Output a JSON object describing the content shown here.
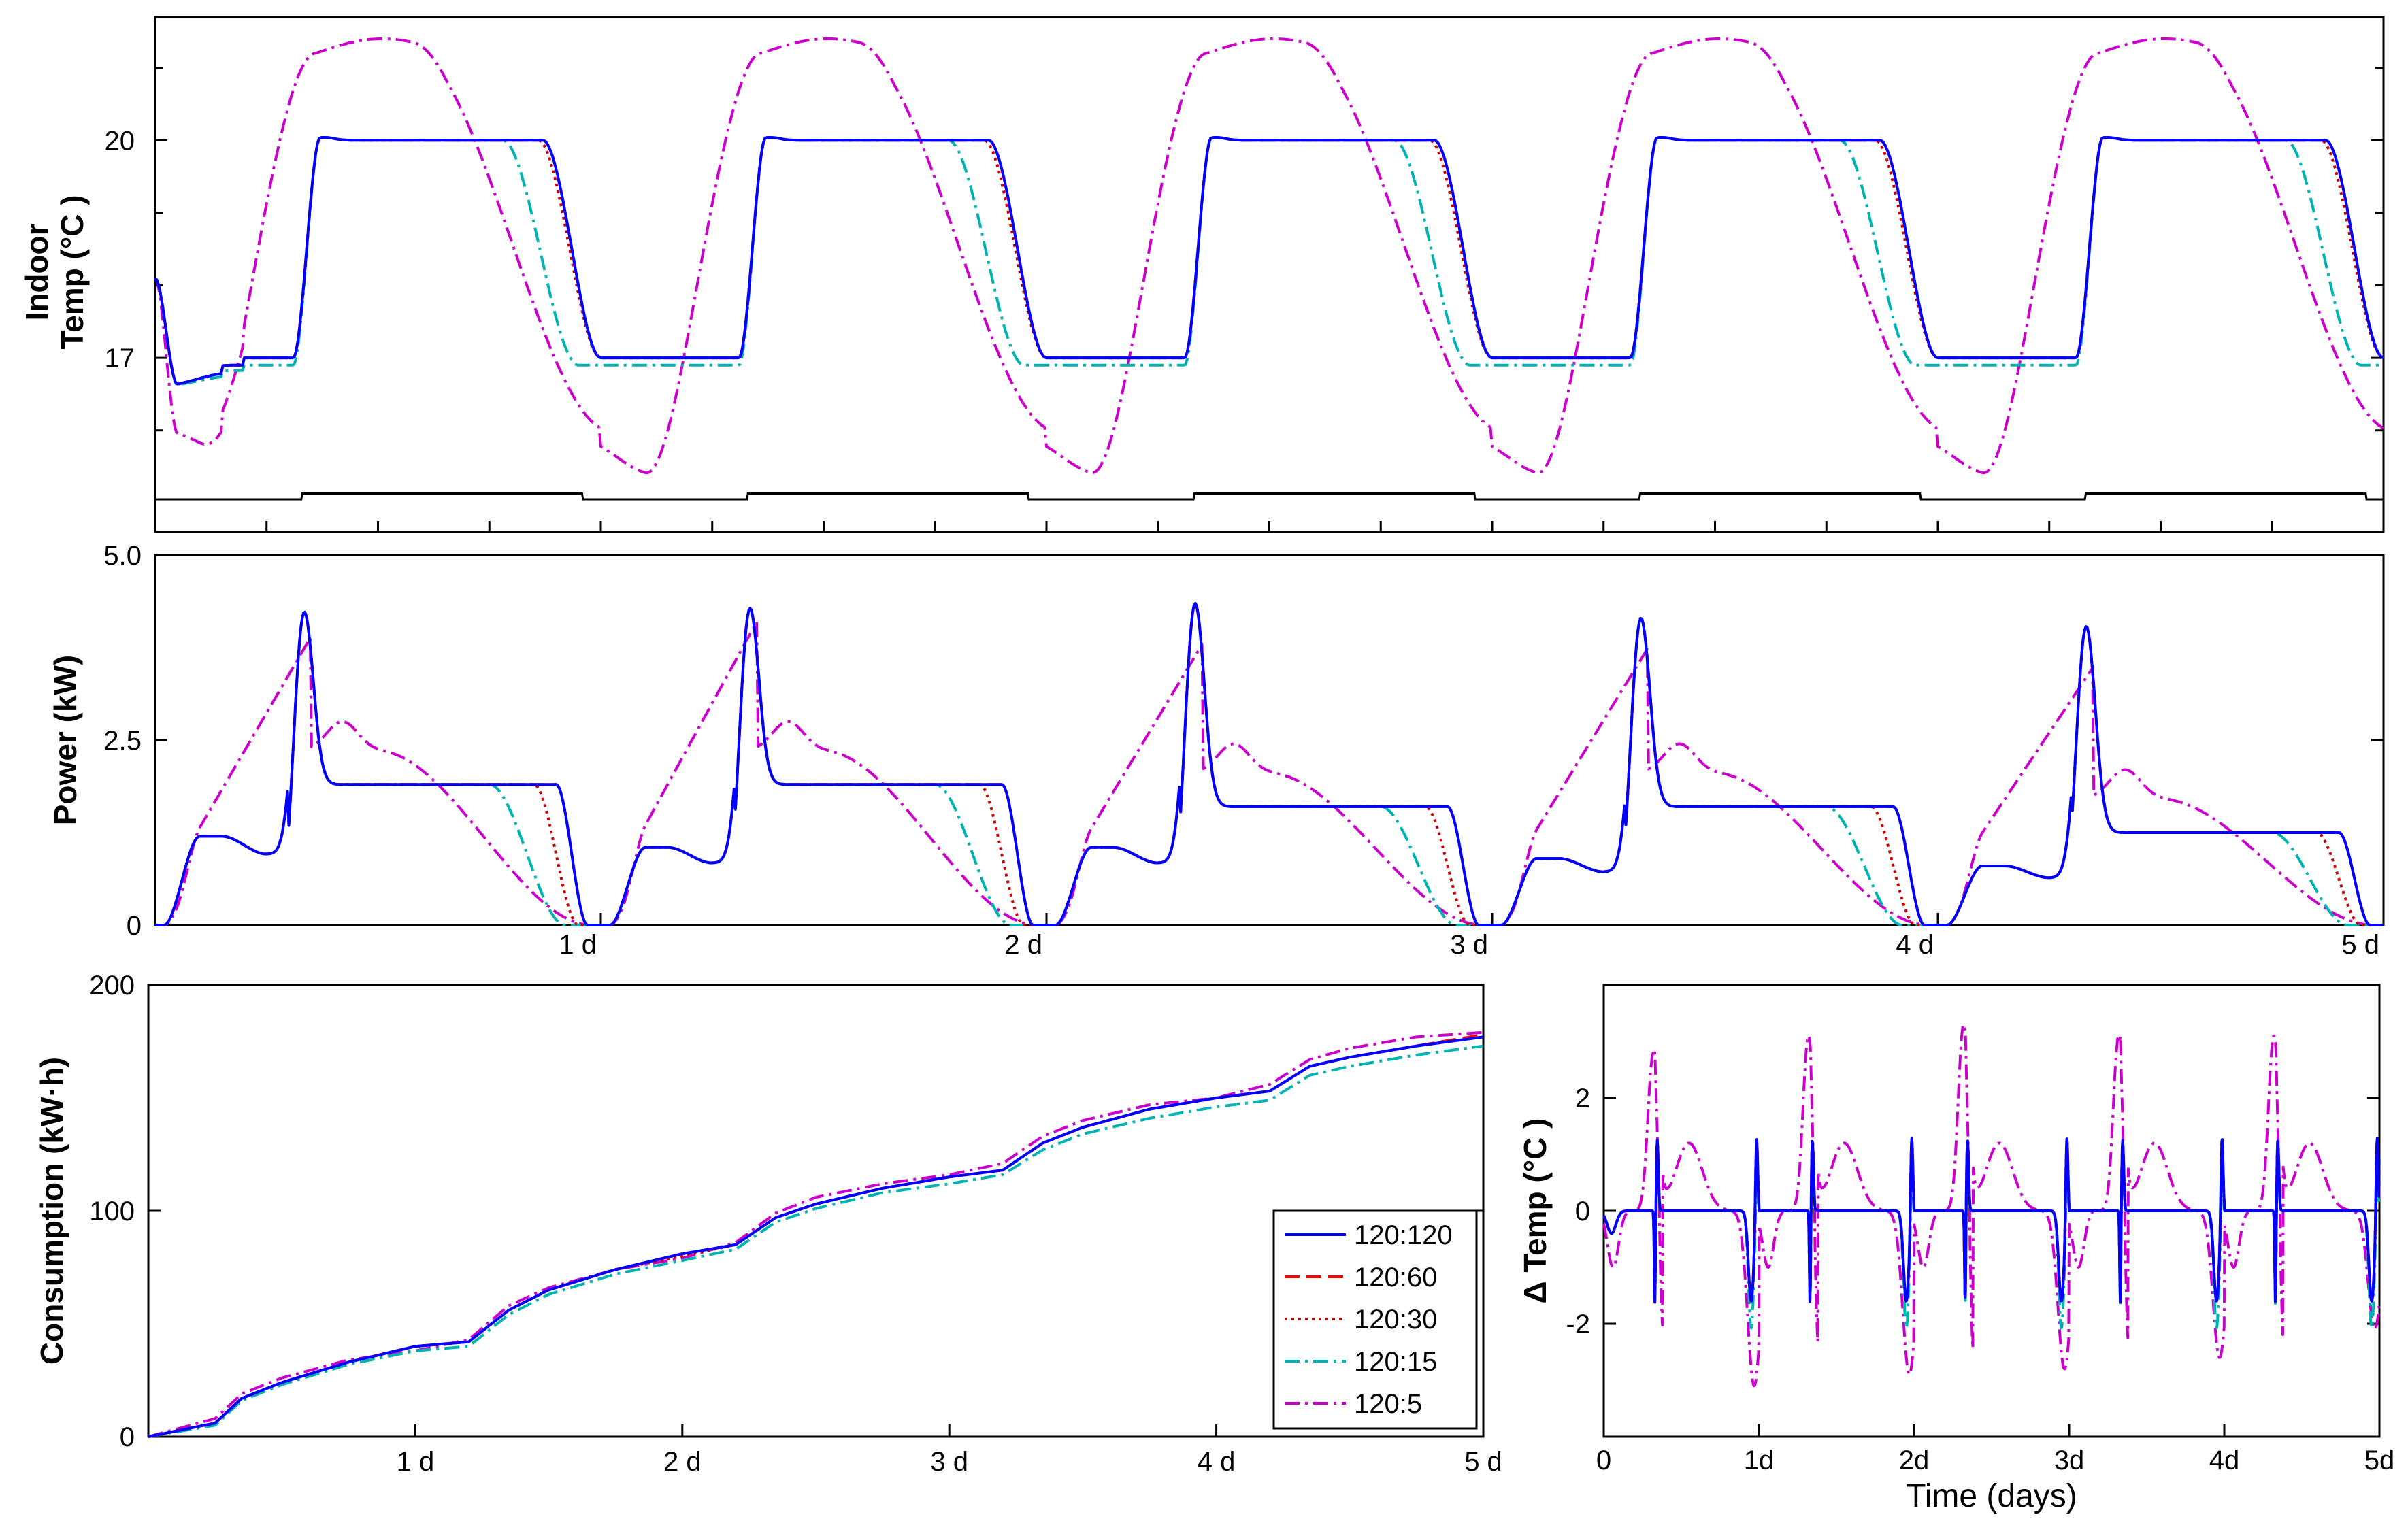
{
  "chart_data": [
    {
      "type": "line",
      "id": "temp",
      "ylabel_lines": [
        "Indoor",
        "Temp (°C )"
      ],
      "xlim": [
        0,
        5
      ],
      "ylim": [
        14.6,
        21.7
      ],
      "yticks": [
        17,
        20
      ],
      "ytick_labels": [
        "17",
        "20"
      ],
      "xticks": [
        0.25,
        0.5,
        0.75,
        1,
        1.25,
        1.5,
        1.75,
        2,
        2.25,
        2.5,
        2.75,
        3,
        3.25,
        3.5,
        3.75,
        4,
        4.25,
        4.5,
        4.75
      ],
      "xtick_labels": [],
      "yminor": [
        16,
        17,
        18,
        19,
        20,
        21
      ],
      "setpoint": {
        "low": 15.05,
        "high": 15.13,
        "intervals": [
          [
            0.33,
            0.96
          ],
          [
            1.33,
            1.96
          ],
          [
            2.33,
            2.96
          ],
          [
            3.33,
            3.96
          ],
          [
            4.33,
            4.96
          ]
        ]
      },
      "series_params": [
        {
          "name": "120:120",
          "base": 17,
          "high": 20,
          "start": 18.1,
          "rise": [
            0.31,
            0.37
          ],
          "fall": [
            0.87,
            1.0
          ],
          "overshoot": 0.04
        },
        {
          "name": "120:60",
          "base": 17,
          "high": 20,
          "start": 18.1,
          "rise": [
            0.31,
            0.37
          ],
          "fall": [
            0.87,
            1.0
          ],
          "overshoot": 0.04
        },
        {
          "name": "120:30",
          "base": 17,
          "high": 20,
          "start": 18.1,
          "rise": [
            0.31,
            0.37
          ],
          "fall": [
            0.86,
            1.0
          ],
          "overshoot": 0.04
        },
        {
          "name": "120:15",
          "base": 16.9,
          "high": 20,
          "start": 18.1,
          "rise": [
            0.31,
            0.37
          ],
          "fall": [
            0.78,
            0.95
          ],
          "overshoot": 0.04
        },
        {
          "name": "120:5",
          "base": 16.0,
          "high": 21.2,
          "start": 18.1,
          "rise": [
            0.1,
            0.36
          ],
          "fall": [
            0.58,
            1.02
          ],
          "overshoot": 0
        }
      ]
    },
    {
      "type": "line",
      "id": "power",
      "ylabel": "Power (kW)",
      "xlim": [
        0,
        5
      ],
      "ylim": [
        0,
        5.0
      ],
      "yticks": [
        0,
        2.5,
        5.0
      ],
      "ytick_labels": [
        "0",
        "2.5",
        "5.0"
      ],
      "xticks": [
        1,
        2,
        3,
        4,
        5
      ],
      "xtick_labels": [
        "1 d",
        "2 d",
        "3 d",
        "4 d",
        "5 d"
      ],
      "peaks": [
        4.75,
        4.8,
        4.8,
        4.6,
        4.4
      ],
      "plateau": [
        1.9,
        1.9,
        1.6,
        1.6,
        1.25
      ],
      "day_start_level": [
        1.2,
        1.05,
        1.05,
        0.9,
        0.8
      ],
      "flex_peaks": [
        3.9,
        4.1,
        3.8,
        3.75,
        3.5
      ]
    },
    {
      "type": "line",
      "id": "consumption",
      "ylabel": "Consumption (kW·h)",
      "xlim": [
        0,
        5
      ],
      "ylim": [
        0,
        200
      ],
      "yticks": [
        0,
        100,
        200
      ],
      "ytick_labels": [
        "0",
        "100",
        "200"
      ],
      "xticks": [
        1,
        2,
        3,
        4,
        5
      ],
      "xtick_labels": [
        "1 d",
        "2 d",
        "3 d",
        "4 d",
        "5 d"
      ],
      "legend": {
        "placement": "lower-right",
        "entries": [
          "120:120",
          "120:60",
          "120:30",
          "120:15",
          "120:5"
        ]
      },
      "x": [
        0,
        0.25,
        0.35,
        0.5,
        0.75,
        1.0,
        1.2,
        1.35,
        1.5,
        1.75,
        2.0,
        2.2,
        2.35,
        2.5,
        2.75,
        3.0,
        3.2,
        3.35,
        3.5,
        3.75,
        4.0,
        4.2,
        4.35,
        4.5,
        4.75,
        5.0
      ],
      "series": [
        {
          "name": "120:120",
          "values": [
            0,
            6,
            17,
            24,
            33,
            40,
            42,
            56,
            65,
            74,
            81,
            85,
            97,
            103,
            110,
            115,
            118,
            130,
            137,
            145,
            150,
            153,
            164,
            168,
            173,
            177
          ]
        },
        {
          "name": "120:60",
          "values": [
            0,
            6,
            17,
            24,
            33,
            40,
            42,
            56,
            65,
            74,
            81,
            85,
            97,
            103,
            110,
            115,
            118,
            130,
            137,
            145,
            150,
            153,
            164,
            168,
            173,
            178
          ]
        },
        {
          "name": "120:30",
          "values": [
            0,
            6,
            17,
            24,
            33,
            40,
            42,
            56,
            65,
            74,
            80,
            85,
            97,
            103,
            110,
            115,
            118,
            130,
            137,
            145,
            150,
            153,
            164,
            168,
            173,
            177
          ]
        },
        {
          "name": "120:15",
          "values": [
            0,
            5,
            16,
            23,
            32,
            38,
            40,
            54,
            63,
            72,
            78,
            83,
            95,
            101,
            108,
            112,
            116,
            127,
            134,
            141,
            146,
            149,
            160,
            164,
            169,
            173
          ]
        },
        {
          "name": "120:5",
          "values": [
            0,
            8,
            19,
            26,
            34,
            38,
            43,
            58,
            66,
            74,
            79,
            86,
            99,
            106,
            112,
            116,
            121,
            133,
            140,
            147,
            150,
            156,
            167,
            172,
            177,
            179
          ]
        }
      ]
    },
    {
      "type": "line",
      "id": "delta",
      "ylabel": "Δ Temp (°C )",
      "xlabel": "Time (days)",
      "xlim": [
        0,
        5
      ],
      "ylim": [
        -4,
        4
      ],
      "yticks": [
        -2,
        0,
        2
      ],
      "ytick_labels": [
        "-2",
        "0",
        "2"
      ],
      "xticks": [
        0,
        1,
        2,
        3,
        4,
        5
      ],
      "xtick_labels": [
        "0",
        "1d",
        "2d",
        "3d",
        "4d",
        "5d"
      ],
      "spike_up": 1.5,
      "spike_down": -1.75,
      "flex_up": [
        2.8,
        3.1,
        3.3,
        3.1,
        3.1
      ],
      "flex_down": [
        -3.1,
        -2.9,
        -2.8,
        -2.6,
        -2.1
      ]
    }
  ],
  "styles": {
    "120:120": {
      "color": "#0000ff",
      "dash": ""
    },
    "120:60": {
      "color": "#ff0000",
      "dash": "22 10"
    },
    "120:30": {
      "color": "#cc0000",
      "dash": "4 6"
    },
    "120:15": {
      "color": "#00b3b3",
      "dash": "22 8 4 8"
    },
    "120:5": {
      "color": "#cc00cc",
      "dash": "22 8 4 8"
    }
  }
}
